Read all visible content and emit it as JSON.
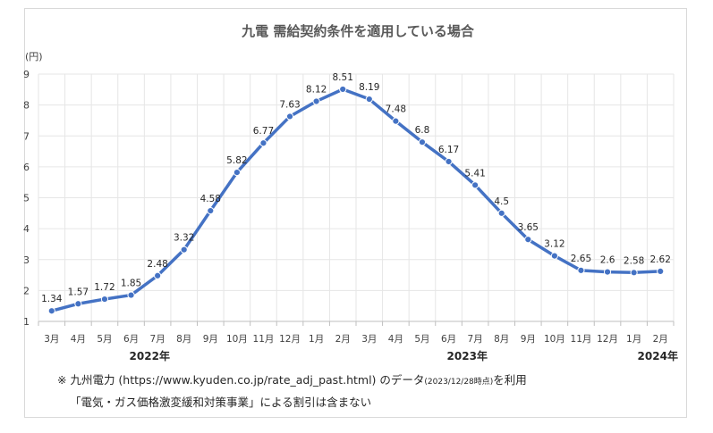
{
  "chart_data": {
    "type": "line",
    "title": "九電 需給契約条件を適用している場合",
    "ylabel": "(円)",
    "ylim": [
      1,
      9
    ],
    "yticks": [
      1,
      2,
      3,
      4,
      5,
      6,
      7,
      8,
      9
    ],
    "grid": true,
    "categories": [
      "3月",
      "4月",
      "5月",
      "6月",
      "7月",
      "8月",
      "9月",
      "10月",
      "11月",
      "12月",
      "1月",
      "2月",
      "3月",
      "4月",
      "5月",
      "6月",
      "7月",
      "8月",
      "9月",
      "10月",
      "11月",
      "12月",
      "1月",
      "2月"
    ],
    "year_labels": [
      {
        "label": "2022年",
        "at_index": 3.7
      },
      {
        "label": "2023年",
        "at_index": 15.7
      },
      {
        "label": "2024年",
        "at_index": 22.9
      }
    ],
    "series": [
      {
        "values": [
          1.34,
          1.57,
          1.72,
          1.85,
          2.48,
          3.32,
          4.58,
          5.82,
          6.77,
          7.63,
          8.12,
          8.51,
          8.19,
          7.48,
          6.8,
          6.17,
          5.41,
          4.5,
          3.65,
          3.12,
          2.65,
          2.6,
          2.58,
          2.62
        ],
        "data_labels": [
          "1.34",
          "1.57",
          "1.72",
          "1.85",
          "2.48",
          "3.32",
          "4.58",
          "5.82",
          "6.77",
          "7.63",
          "8.12",
          "8.51",
          "8.19",
          "7.48",
          "6.8",
          "6.17",
          "5.41",
          "4.5",
          "3.65",
          "3.12",
          "2.65",
          "2.6",
          "2.58",
          "2.62"
        ],
        "color": "#4472c4"
      }
    ]
  },
  "notes": {
    "line1_prefix": "※ 九州電力 (https://www.kyuden.co.jp/rate_adj_past.html) のデータ",
    "line1_small": "(2023/12/28時点)",
    "line1_suffix": "を利用",
    "line2": "「電気・ガス価格激変緩和対策事業」による割引は含まない"
  },
  "colors": {
    "line": "#4472c4",
    "grid": "#e6e6e6",
    "border": "#d9d9d9"
  }
}
